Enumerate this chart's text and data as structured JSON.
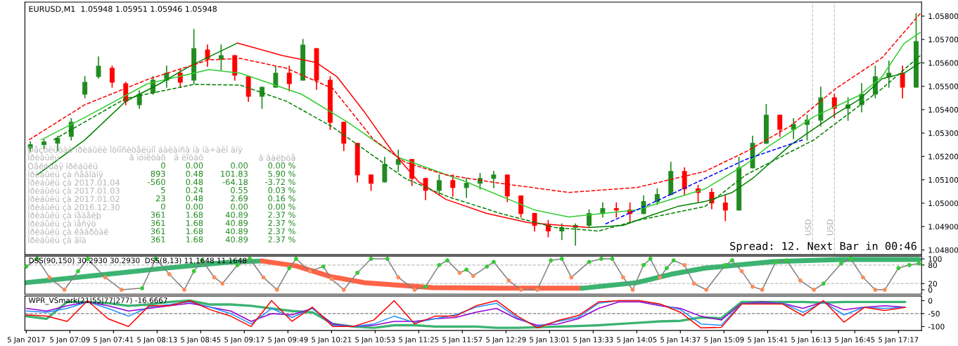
{
  "chart_data": [
    {
      "type": "candlestick",
      "title": "EURUSD,M1  1.05948 1.05951 1.05946 1.05948",
      "tick_labels": "y",
      "grid": false,
      "legend": false,
      "xlim": [
        "2017-01-05T06:36",
        "2017-01-05T17:34"
      ],
      "ylim": [
        1.0478,
        1.0586
      ],
      "yticks": [
        {
          "value": 1.048,
          "label": "1.04800"
        },
        {
          "value": 1.049,
          "label": "1.04900"
        },
        {
          "value": 1.05,
          "label": "1.05000"
        },
        {
          "value": 1.051,
          "label": "1.05100"
        },
        {
          "value": 1.052,
          "label": "1.05200"
        },
        {
          "value": 1.053,
          "label": "1.05300"
        },
        {
          "value": 1.054,
          "label": "1.05400"
        },
        {
          "value": 1.055,
          "label": "1.05500"
        },
        {
          "value": 1.056,
          "label": "1.05600"
        },
        {
          "value": 1.057,
          "label": "1.05700"
        },
        {
          "value": 1.058,
          "label": "1.05800"
        }
      ],
      "x": [
        "2017-01-05T06:40",
        "2017-01-05T06:50",
        "2017-01-05T07:00",
        "2017-01-05T07:10",
        "2017-01-05T07:20",
        "2017-01-05T07:30",
        "2017-01-05T07:40",
        "2017-01-05T07:50",
        "2017-01-05T08:00",
        "2017-01-05T08:10",
        "2017-01-05T08:20",
        "2017-01-05T08:30",
        "2017-01-05T08:40",
        "2017-01-05T08:50",
        "2017-01-05T09:00",
        "2017-01-05T09:10",
        "2017-01-05T09:20",
        "2017-01-05T09:30",
        "2017-01-05T09:40",
        "2017-01-05T09:50",
        "2017-01-05T10:00",
        "2017-01-05T10:10",
        "2017-01-05T10:20",
        "2017-01-05T10:30",
        "2017-01-05T10:40",
        "2017-01-05T10:50",
        "2017-01-05T11:00",
        "2017-01-05T11:10",
        "2017-01-05T11:20",
        "2017-01-05T11:30",
        "2017-01-05T11:40",
        "2017-01-05T11:50",
        "2017-01-05T12:00",
        "2017-01-05T12:10",
        "2017-01-05T12:20",
        "2017-01-05T12:30",
        "2017-01-05T12:40",
        "2017-01-05T12:50",
        "2017-01-05T13:00",
        "2017-01-05T13:10",
        "2017-01-05T13:20",
        "2017-01-05T13:30",
        "2017-01-05T13:40",
        "2017-01-05T13:50",
        "2017-01-05T14:00",
        "2017-01-05T14:10",
        "2017-01-05T14:20",
        "2017-01-05T14:30",
        "2017-01-05T14:40",
        "2017-01-05T14:50",
        "2017-01-05T15:00",
        "2017-01-05T15:10",
        "2017-01-05T15:20",
        "2017-01-05T15:30",
        "2017-01-05T15:40",
        "2017-01-05T15:50",
        "2017-01-05T16:00",
        "2017-01-05T16:10",
        "2017-01-05T16:20",
        "2017-01-05T16:30",
        "2017-01-05T16:40",
        "2017-01-05T16:50",
        "2017-01-05T17:00",
        "2017-01-05T17:10",
        "2017-01-05T17:20",
        "2017-01-05T17:30"
      ],
      "ohlc": [
        [
          1.05235,
          1.05262,
          1.05223,
          1.0525
        ],
        [
          1.0525,
          1.05271,
          1.05235,
          1.05262
        ],
        [
          1.05256,
          1.05286,
          1.05226,
          1.05277
        ],
        [
          1.05286,
          1.05361,
          1.05271,
          1.05346
        ],
        [
          1.05466,
          1.05541,
          1.05451,
          1.05517
        ],
        [
          1.05541,
          1.05625,
          1.05535,
          1.05586
        ],
        [
          1.05577,
          1.05586,
          1.05496,
          1.05517
        ],
        [
          1.05511,
          1.05517,
          1.05421,
          1.05436
        ],
        [
          1.05421,
          1.05481,
          1.05406,
          1.05466
        ],
        [
          1.05472,
          1.05541,
          1.05466,
          1.05526
        ],
        [
          1.05526,
          1.05586,
          1.05496,
          1.05556
        ],
        [
          1.05556,
          1.05571,
          1.05496,
          1.05517
        ],
        [
          1.05526,
          1.05742,
          1.05511,
          1.05661
        ],
        [
          1.05655,
          1.05676,
          1.05586,
          1.05616
        ],
        [
          1.05616,
          1.05676,
          1.05571,
          1.05631
        ],
        [
          1.05631,
          1.05631,
          1.05526,
          1.05547
        ],
        [
          1.05541,
          1.05541,
          1.05436,
          1.05457
        ],
        [
          1.05457,
          1.05496,
          1.05406,
          1.05496
        ],
        [
          1.05496,
          1.05586,
          1.05496,
          1.05556
        ],
        [
          1.05556,
          1.05586,
          1.05481,
          1.05511
        ],
        [
          1.05526,
          1.057,
          1.05526,
          1.05676
        ],
        [
          1.05661,
          1.05661,
          1.05487,
          1.05526
        ],
        [
          1.05526,
          1.05541,
          1.05316,
          1.05346
        ],
        [
          1.05346,
          1.05346,
          1.05226,
          1.05256
        ],
        [
          1.05256,
          1.05256,
          1.05091,
          1.05121
        ],
        [
          1.05121,
          1.05121,
          1.05055,
          1.05085
        ],
        [
          1.05091,
          1.05196,
          1.05091,
          1.05166
        ],
        [
          1.05166,
          1.05226,
          1.05136,
          1.05187
        ],
        [
          1.05187,
          1.05187,
          1.05076,
          1.05106
        ],
        [
          1.05106,
          1.05106,
          1.05016,
          1.05055
        ],
        [
          1.05055,
          1.05121,
          1.05037,
          1.05097
        ],
        [
          1.05097,
          1.05121,
          1.05031,
          1.05067
        ],
        [
          1.05067,
          1.05106,
          1.05025,
          1.05085
        ],
        [
          1.05085,
          1.05127,
          1.05061,
          1.05106
        ],
        [
          1.05106,
          1.05136,
          1.05067,
          1.05121
        ],
        [
          1.05121,
          1.05121,
          1.05007,
          1.05031
        ],
        [
          1.05031,
          1.05031,
          1.04941,
          1.04956
        ],
        [
          1.04956,
          1.04956,
          1.04881,
          1.04905
        ],
        [
          1.04905,
          1.04926,
          1.04857,
          1.04881
        ],
        [
          1.04881,
          1.04911,
          1.04845,
          1.04896
        ],
        [
          1.04896,
          1.04911,
          1.04821,
          1.04905
        ],
        [
          1.04905,
          1.04971,
          1.04896,
          1.04956
        ],
        [
          1.04956,
          1.05001,
          1.04941,
          1.04977
        ],
        [
          1.04977,
          1.05001,
          1.04941,
          1.04971
        ],
        [
          1.04971,
          1.05001,
          1.04917,
          1.04956
        ],
        [
          1.04956,
          1.05031,
          1.04956,
          1.05007
        ],
        [
          1.05007,
          1.05061,
          1.04995,
          1.05037
        ],
        [
          1.05037,
          1.05175,
          1.05037,
          1.05136
        ],
        [
          1.05136,
          1.05151,
          1.05037,
          1.05061
        ],
        [
          1.05061,
          1.05076,
          1.05007,
          1.05046
        ],
        [
          1.05046,
          1.05061,
          1.04977,
          1.05001
        ],
        [
          1.05001,
          1.05031,
          1.04926,
          1.04971
        ],
        [
          1.04971,
          1.05196,
          1.04971,
          1.05151
        ],
        [
          1.05151,
          1.05286,
          1.05151,
          1.05256
        ],
        [
          1.05256,
          1.05421,
          1.05256,
          1.05376
        ],
        [
          1.05376,
          1.05376,
          1.05286,
          1.05316
        ],
        [
          1.05316,
          1.05361,
          1.05277,
          1.05337
        ],
        [
          1.05337,
          1.05376,
          1.05271,
          1.05355
        ],
        [
          1.05355,
          1.05496,
          1.05331,
          1.05451
        ],
        [
          1.05451,
          1.05466,
          1.05367,
          1.05406
        ],
        [
          1.05406,
          1.05451,
          1.05355,
          1.05421
        ],
        [
          1.05421,
          1.05511,
          1.05391,
          1.05466
        ],
        [
          1.05466,
          1.05586,
          1.05451,
          1.05541
        ],
        [
          1.05541,
          1.05607,
          1.05496,
          1.05556
        ],
        [
          1.05556,
          1.05586,
          1.05451,
          1.05496
        ],
        [
          1.05496,
          1.05811,
          1.05496,
          1.05691
        ]
      ],
      "colors": [
        "#228b22",
        "#228b22",
        "#228b22",
        "#228b22",
        "#228b22",
        "#228b22",
        "#ff0000",
        "#ff0000",
        "#228b22",
        "#228b22",
        "#228b22",
        "#ff0000",
        "#228b22",
        "#ff0000",
        "#228b22",
        "#ff0000",
        "#ff0000",
        "#228b22",
        "#228b22",
        "#ff0000",
        "#228b22",
        "#ff0000",
        "#ff0000",
        "#ff0000",
        "#ff0000",
        "#ff0000",
        "#228b22",
        "#228b22",
        "#ff0000",
        "#ff0000",
        "#228b22",
        "#ff0000",
        "#228b22",
        "#228b22",
        "#228b22",
        "#ff0000",
        "#ff0000",
        "#ff0000",
        "#ff0000",
        "#228b22",
        "#228b22",
        "#228b22",
        "#228b22",
        "#ff0000",
        "#ff0000",
        "#228b22",
        "#228b22",
        "#228b22",
        "#ff0000",
        "#ff0000",
        "#ff0000",
        "#ff0000",
        "#228b22",
        "#228b22",
        "#228b22",
        "#ff0000",
        "#228b22",
        "#228b22",
        "#228b22",
        "#ff0000",
        "#228b22",
        "#228b22",
        "#228b22",
        "#228b22",
        "#ff0000",
        "#228b22"
      ],
      "series": [
        {
          "type": "line",
          "color": "#32cd32",
          "line_style": "solid",
          "x": [
            "2017-01-05T06:48",
            "2017-01-05T07:20",
            "2017-01-05T08:06",
            "2017-01-05T08:51",
            "2017-01-05T09:14",
            "2017-01-05T09:59",
            "2017-01-05T10:33",
            "2017-01-05T11:10",
            "2017-01-05T12:00",
            "2017-01-05T12:50",
            "2017-01-05T13:15",
            "2017-01-05T14:05",
            "2017-01-05T14:55",
            "2017-01-05T15:25",
            "2017-01-05T15:41",
            "2017-01-05T16:15",
            "2017-01-05T16:48",
            "2017-01-05T17:05",
            "2017-01-05T17:21",
            "2017-01-05T17:33"
          ],
          "values": [
            1.05271,
            1.05367,
            1.05511,
            1.05571,
            1.05556,
            1.05466,
            1.05346,
            1.05196,
            1.05091,
            1.04971,
            1.04941,
            1.04971,
            1.05061,
            1.05166,
            1.05241,
            1.0537,
            1.0546,
            1.05541,
            1.05682,
            1.0573
          ]
        },
        {
          "type": "line",
          "color": "#008000",
          "line_style": "solid",
          "x": [
            "2017-01-05T06:45",
            "2017-01-05T07:20",
            "2017-01-05T07:50",
            "2017-01-05T08:15",
            "2017-01-05T08:37",
            "2017-01-05T09:12"
          ],
          "values": [
            1.05121,
            1.05271,
            1.05436,
            1.05511,
            1.05586,
            1.05685
          ]
        },
        {
          "type": "line",
          "color": "#ff0000",
          "line_style": "solid",
          "x": [
            "2017-01-05T09:12",
            "2017-01-05T09:45",
            "2017-01-05T10:10",
            "2017-01-05T10:25",
            "2017-01-05T10:45",
            "2017-01-05T11:05",
            "2017-01-05T11:25",
            "2017-01-05T11:45",
            "2017-01-05T12:15",
            "2017-01-05T12:45",
            "2017-01-05T13:10",
            "2017-01-05T13:30"
          ],
          "values": [
            1.05685,
            1.05631,
            1.05601,
            1.05541,
            1.05391,
            1.05226,
            1.05091,
            1.05016,
            1.04956,
            1.04917,
            1.04905,
            1.04896
          ]
        },
        {
          "type": "line",
          "color": "#008000",
          "line_style": "solid",
          "x": [
            "2017-01-05T13:30",
            "2017-01-05T13:55",
            "2017-01-05T14:15",
            "2017-01-05T14:35",
            "2017-01-05T14:55",
            "2017-01-05T15:15",
            "2017-01-05T15:30",
            "2017-01-05T15:58",
            "2017-01-05T16:31",
            "2017-01-05T16:48",
            "2017-01-05T17:05",
            "2017-01-05T17:21",
            "2017-01-05T17:33"
          ],
          "values": [
            1.04896,
            1.04905,
            1.04947,
            1.04986,
            1.05007,
            1.05046,
            1.05106,
            1.0525,
            1.05382,
            1.05442,
            1.05532,
            1.05556,
            1.05601
          ]
        },
        {
          "type": "line",
          "color": "#ff0000",
          "line_style": "dashed",
          "x": [
            "2017-01-05T06:39",
            "2017-01-05T07:20",
            "2017-01-05T08:06",
            "2017-01-05T08:51",
            "2017-01-05T09:14",
            "2017-01-05T09:48",
            "2017-01-05T10:22",
            "2017-01-05T10:52",
            "2017-01-05T11:15",
            "2017-01-05T11:45",
            "2017-01-05T12:25",
            "2017-01-05T13:15",
            "2017-01-05T14:05",
            "2017-01-05T14:55",
            "2017-01-05T15:25",
            "2017-01-05T15:58",
            "2017-01-05T16:31",
            "2017-01-05T17:05",
            "2017-01-05T17:33"
          ],
          "values": [
            1.05271,
            1.05421,
            1.05529,
            1.05613,
            1.05619,
            1.05577,
            1.0549,
            1.05271,
            1.05175,
            1.05121,
            1.05085,
            1.05046,
            1.05067,
            1.05136,
            1.0522,
            1.05331,
            1.0549,
            1.05622,
            1.05811
          ]
        },
        {
          "type": "line",
          "color": "#008000",
          "line_style": "dashed",
          "x": [
            "2017-01-05T06:57",
            "2017-01-05T07:50",
            "2017-01-05T08:40",
            "2017-01-05T09:14",
            "2017-01-05T09:48",
            "2017-01-05T10:22",
            "2017-01-05T11:15",
            "2017-01-05T11:45",
            "2017-01-05T12:25",
            "2017-01-05T13:05",
            "2017-01-05T13:37",
            "2017-01-05T14:05",
            "2017-01-05T14:55",
            "2017-01-05T15:25",
            "2017-01-05T16:15",
            "2017-01-05T17:05",
            "2017-01-05T17:33"
          ],
          "values": [
            1.05271,
            1.05448,
            1.05508,
            1.05505,
            1.05436,
            1.05325,
            1.05106,
            1.05031,
            1.04956,
            1.04896,
            1.04881,
            1.04926,
            1.04986,
            1.05121,
            1.05271,
            1.0549,
            1.05631
          ]
        },
        {
          "type": "line",
          "color": "#0000ff",
          "line_style": "dashed",
          "x": [
            "2017-01-05T13:42",
            "2017-01-05T14:22",
            "2017-01-05T15:25",
            "2017-01-05T16:07"
          ],
          "values": [
            1.04911,
            1.05016,
            1.05187,
            1.05271
          ]
        }
      ],
      "ref_lines": [
        {
          "axis": "x",
          "value": "2017-01-05T16:14",
          "label": "USD",
          "color": "#c8c8c8",
          "line_style": "dashed"
        },
        {
          "axis": "x",
          "value": "2017-01-05T16:30",
          "label": "USD",
          "color": "#c8c8c8",
          "line_style": "dashed"
        }
      ],
      "annotations": [
        "Spread: 12. Next Bar in 00:46",
        "Ðåçóëüòàò ïðèáûëè îòíîñèòåëüíî áàëàíñà íà íà÷àëî äíÿ",
        "Ïðèáûëü\tâ ïóíêòàõ\tâ ëîòàõ\t\tâ âàëþòå",
        "Òåêóùàÿ ïðèáûëü\t0\t0.00\t0.00\t0.00 %",
        "Ïðèáûëü çà ñåãîäíÿ\t893\t0.48\t101.83\t5.90 %",
        "Ïðèáûëü çà 2017.01.04\t-560\t0.48\t-64.18\t-3.72 %",
        "Ïðèáûëü çà 2017.01.03\t5\t0.24\t0.55\t0.03 %",
        "Ïðèáûëü çà 2017.01.02\t23\t0.48\t2.69\t0.16 %",
        "Ïðèáûëü çà 2016.12.30\t0\t0.00\t0.00\t0.00 %",
        "Ïðèáûëü çà íåäåëþ\t361\t1.68\t40.89\t2.37 %",
        "Ïðèáûëü çà ìåñÿö\t361\t1.68\t40.89\t2.37 %",
        "Ïðèáûëü çà êâàðòàë\t361\t1.68\t40.89\t2.37 %",
        "Ïðèáûëü çà ãîä\t361\t1.68\t40.89\t2.37 %"
      ]
    },
    {
      "type": "line",
      "tick_labels": "y",
      "grid": false,
      "legend": false,
      "xlim": [
        "2017-01-05T06:36",
        "2017-01-05T17:34"
      ],
      "ylim": [
        -14,
        109
      ],
      "yticks": [
        100,
        80,
        20,
        0
      ],
      "ref_lines": [
        {
          "axis": "y",
          "value": 80,
          "color": "#c0c0c0",
          "line_style": "dashed"
        },
        {
          "axis": "y",
          "value": 20,
          "color": "#c0c0c0",
          "line_style": "dashed"
        }
      ],
      "annotations": [
        "DSS(90,150) 30.2930 30.2930  DSS(8,13) 11.1648 11.1648"
      ],
      "series": [
        {
          "type": "line",
          "color": "#3cb371",
          "x": [
            "2017-01-05T06:37",
            "2017-01-05T07:25",
            "2017-01-05T08:15",
            "2017-01-05T09:05",
            "2017-01-05T09:30"
          ],
          "values": [
            23,
            45,
            68,
            89,
            93
          ]
        },
        {
          "type": "line",
          "color": "#ff6347",
          "x": [
            "2017-01-05T09:30",
            "2017-01-05T09:55",
            "2017-01-05T10:20",
            "2017-01-05T10:45",
            "2017-01-05T11:35",
            "2017-01-05T12:25",
            "2017-01-05T13:25"
          ],
          "values": [
            93,
            77,
            43,
            23,
            7,
            5,
            5
          ]
        },
        {
          "type": "line",
          "color": "#3cb371",
          "x": [
            "2017-01-05T13:25",
            "2017-01-05T14:05",
            "2017-01-05T14:30",
            "2017-01-05T14:55",
            "2017-01-05T15:45",
            "2017-01-05T16:35",
            "2017-01-05T17:32"
          ],
          "values": [
            5,
            23,
            50,
            70,
            91,
            98,
            98
          ]
        },
        {
          "type": "line",
          "color": "#808080",
          "marker": "circle",
          "x": [
            "2017-01-05T06:37",
            "2017-01-05T06:45",
            "2017-01-05T06:54",
            "2017-01-05T07:05",
            "2017-01-05T07:15",
            "2017-01-05T07:22",
            "2017-01-05T07:35",
            "2017-01-05T07:47",
            "2017-01-05T08:02",
            "2017-01-05T08:12",
            "2017-01-05T08:22",
            "2017-01-05T08:33",
            "2017-01-05T08:40",
            "2017-01-05T08:46",
            "2017-01-05T08:55",
            "2017-01-05T09:01",
            "2017-01-05T09:12",
            "2017-01-05T09:21",
            "2017-01-05T09:31",
            "2017-01-05T09:41",
            "2017-01-05T09:50",
            "2017-01-05T09:55",
            "2017-01-05T10:05",
            "2017-01-05T10:15",
            "2017-01-05T10:21",
            "2017-01-05T10:30",
            "2017-01-05T10:40",
            "2017-01-05T10:50",
            "2017-01-05T11:02",
            "2017-01-05T11:10",
            "2017-01-05T11:22",
            "2017-01-05T11:30",
            "2017-01-05T11:40",
            "2017-01-05T11:46",
            "2017-01-05T11:55",
            "2017-01-05T12:00",
            "2017-01-05T12:05",
            "2017-01-05T12:15",
            "2017-01-05T12:20",
            "2017-01-05T12:31",
            "2017-01-05T12:40",
            "2017-01-05T12:52",
            "2017-01-05T13:02",
            "2017-01-05T13:10",
            "2017-01-05T13:17",
            "2017-01-05T13:30",
            "2017-01-05T13:39",
            "2017-01-05T13:47",
            "2017-01-05T13:55",
            "2017-01-05T14:02",
            "2017-01-05T14:10",
            "2017-01-05T14:15",
            "2017-01-05T14:22",
            "2017-01-05T14:27",
            "2017-01-05T14:32",
            "2017-01-05T14:40",
            "2017-01-05T14:47",
            "2017-01-05T14:56",
            "2017-01-05T15:10",
            "2017-01-05T15:15",
            "2017-01-05T15:22",
            "2017-01-05T15:30",
            "2017-01-05T15:37",
            "2017-01-05T15:47",
            "2017-01-05T15:55",
            "2017-01-05T16:05",
            "2017-01-05T16:15",
            "2017-01-05T16:22",
            "2017-01-05T16:35",
            "2017-01-05T16:42",
            "2017-01-05T16:51",
            "2017-01-05T17:00",
            "2017-01-05T17:07",
            "2017-01-05T17:17",
            "2017-01-05T17:25",
            "2017-01-05T17:32"
          ],
          "values": [
            75,
            100,
            40,
            0,
            60,
            100,
            40,
            0,
            5,
            100,
            50,
            0,
            60,
            95,
            40,
            20,
            80,
            100,
            40,
            0,
            70,
            100,
            60,
            75,
            35,
            0,
            55,
            100,
            100,
            40,
            0,
            10,
            80,
            95,
            55,
            65,
            45,
            75,
            90,
            30,
            0,
            0,
            95,
            100,
            40,
            90,
            100,
            100,
            40,
            0,
            80,
            100,
            40,
            70,
            95,
            80,
            20,
            0,
            80,
            95,
            60,
            10,
            0,
            90,
            95,
            30,
            0,
            20,
            85,
            100,
            40,
            0,
            0,
            70,
            80,
            85
          ],
          "colors": [
            "#32cd32",
            "#32cd32",
            "#ff8c5a",
            "#ff8c5a",
            "#32cd32",
            "#32cd32",
            "#ff8c5a",
            "#ff8c5a",
            "#32cd32",
            "#32cd32",
            "#ff8c5a",
            "#ff8c5a",
            "#32cd32",
            "#32cd32",
            "#ff8c5a",
            "#ff8c5a",
            "#32cd32",
            "#32cd32",
            "#ff8c5a",
            "#ff8c5a",
            "#32cd32",
            "#32cd32",
            "#ff8c5a",
            "#32cd32",
            "#ff8c5a",
            "#ff8c5a",
            "#32cd32",
            "#32cd32",
            "#32cd32",
            "#ff8c5a",
            "#ff8c5a",
            "#32cd32",
            "#32cd32",
            "#32cd32",
            "#ff8c5a",
            "#32cd32",
            "#ff8c5a",
            "#32cd32",
            "#32cd32",
            "#ff8c5a",
            "#ff8c5a",
            "#ff8c5a",
            "#32cd32",
            "#32cd32",
            "#ff8c5a",
            "#32cd32",
            "#32cd32",
            "#32cd32",
            "#ff8c5a",
            "#ff8c5a",
            "#32cd32",
            "#32cd32",
            "#ff8c5a",
            "#32cd32",
            "#32cd32",
            "#ff8c5a",
            "#ff8c5a",
            "#ff8c5a",
            "#32cd32",
            "#32cd32",
            "#ff8c5a",
            "#ff8c5a",
            "#ff8c5a",
            "#32cd32",
            "#32cd32",
            "#ff8c5a",
            "#ff8c5a",
            "#32cd32",
            "#32cd32",
            "#32cd32",
            "#ff8c5a",
            "#ff8c5a",
            "#ff8c5a",
            "#32cd32",
            "#32cd32",
            "#32cd32"
          ]
        }
      ]
    },
    {
      "type": "line",
      "grid": false,
      "legend": false,
      "xlim": [
        "2017-01-05T06:36",
        "2017-01-05T17:34"
      ],
      "ylim": [
        -115,
        18
      ],
      "yticks": [
        {
          "value": 0,
          "label": "0"
        },
        {
          "value": -50,
          "label": "-50"
        },
        {
          "value": -100,
          "label": "-100"
        }
      ],
      "xticks": [
        {
          "value": "2017-01-05T06:37",
          "label": "5 Jan 2017"
        },
        {
          "value": "2017-01-05T07:09",
          "label": "5 Jan 07:09"
        },
        {
          "value": "2017-01-05T07:41",
          "label": "5 Jan 07:41"
        },
        {
          "value": "2017-01-05T08:13",
          "label": "5 Jan 08:13"
        },
        {
          "value": "2017-01-05T08:45",
          "label": "5 Jan 08:45"
        },
        {
          "value": "2017-01-05T09:17",
          "label": "5 Jan 09:17"
        },
        {
          "value": "2017-01-05T09:49",
          "label": "5 Jan 09:49"
        },
        {
          "value": "2017-01-05T10:21",
          "label": "5 Jan 10:21"
        },
        {
          "value": "2017-01-05T10:53",
          "label": "5 Jan 10:53"
        },
        {
          "value": "2017-01-05T11:25",
          "label": "5 Jan 11:25"
        },
        {
          "value": "2017-01-05T11:57",
          "label": "5 Jan 11:57"
        },
        {
          "value": "2017-01-05T12:29",
          "label": "5 Jan 12:29"
        },
        {
          "value": "2017-01-05T13:01",
          "label": "5 Jan 13:01"
        },
        {
          "value": "2017-01-05T13:33",
          "label": "5 Jan 13:33"
        },
        {
          "value": "2017-01-05T14:05",
          "label": "5 Jan 14:05"
        },
        {
          "value": "2017-01-05T14:37",
          "label": "5 Jan 14:37"
        },
        {
          "value": "2017-01-05T15:09",
          "label": "5 Jan 15:09"
        },
        {
          "value": "2017-01-05T15:41",
          "label": "5 Jan 15:41"
        },
        {
          "value": "2017-01-05T16:13",
          "label": "5 Jan 16:13"
        },
        {
          "value": "2017-01-05T16:45",
          "label": "5 Jan 16:45"
        },
        {
          "value": "2017-01-05T17:17",
          "label": "5 Jan 17:17"
        }
      ],
      "ref_lines": [
        {
          "axis": "y",
          "value": -50,
          "color": "#808080",
          "line_style": "dashed"
        }
      ],
      "annotations": [
        "WPR_VSmark(21|55|77|277) -16.6667"
      ],
      "x": [
        "2017-01-05T06:37",
        "2017-01-05T06:52",
        "2017-01-05T07:07",
        "2017-01-05T07:22",
        "2017-01-05T07:37",
        "2017-01-05T07:52",
        "2017-01-05T08:07",
        "2017-01-05T08:22",
        "2017-01-05T08:37",
        "2017-01-05T08:52",
        "2017-01-05T09:07",
        "2017-01-05T09:22",
        "2017-01-05T09:37",
        "2017-01-05T09:52",
        "2017-01-05T10:07",
        "2017-01-05T10:22",
        "2017-01-05T10:37",
        "2017-01-05T10:52",
        "2017-01-05T11:07",
        "2017-01-05T11:22",
        "2017-01-05T11:37",
        "2017-01-05T11:52",
        "2017-01-05T12:07",
        "2017-01-05T12:22",
        "2017-01-05T12:37",
        "2017-01-05T12:52",
        "2017-01-05T13:07",
        "2017-01-05T13:22",
        "2017-01-05T13:37",
        "2017-01-05T13:52",
        "2017-01-05T14:07",
        "2017-01-05T14:22",
        "2017-01-05T14:37",
        "2017-01-05T14:52",
        "2017-01-05T15:07",
        "2017-01-05T15:22",
        "2017-01-05T15:37",
        "2017-01-05T15:52",
        "2017-01-05T16:07",
        "2017-01-05T16:22",
        "2017-01-05T16:37",
        "2017-01-05T16:52",
        "2017-01-05T17:07",
        "2017-01-05T17:22"
      ],
      "series": [
        {
          "type": "line",
          "color": "#3cb371",
          "values": [
            -60,
            -70,
            -5,
            -5,
            -10,
            -20,
            -15,
            -5,
            0,
            -15,
            -15,
            -20,
            -30,
            -40,
            -45,
            -90,
            -100,
            -105,
            -95,
            -95,
            -100,
            -100,
            -100,
            -105,
            -105,
            -103,
            -100,
            -98,
            -95,
            -90,
            -85,
            -80,
            -78,
            -65,
            -68,
            -5,
            -5,
            -5,
            -5,
            -8,
            -5,
            -5,
            -5,
            -5
          ]
        },
        {
          "type": "line",
          "color": "#9400d3",
          "values": [
            -30,
            -40,
            -20,
            -5,
            -20,
            -40,
            -30,
            -20,
            -10,
            -25,
            -40,
            -80,
            -50,
            -55,
            -30,
            -90,
            -100,
            -95,
            -80,
            -80,
            -70,
            -65,
            -45,
            -30,
            -70,
            -95,
            -90,
            -70,
            -30,
            -5,
            -5,
            -20,
            -30,
            -60,
            -75,
            -10,
            -5,
            -10,
            -30,
            -5,
            -35,
            -25,
            -20,
            -25
          ]
        },
        {
          "type": "line",
          "color": "#1e90ff",
          "values": [
            -40,
            -45,
            -30,
            -5,
            -30,
            -60,
            -25,
            -15,
            -5,
            -25,
            -50,
            -90,
            -30,
            -65,
            -30,
            -95,
            -100,
            -90,
            -60,
            -85,
            -70,
            -55,
            -25,
            -10,
            -65,
            -100,
            -80,
            -65,
            -10,
            0,
            0,
            -15,
            -35,
            -90,
            -95,
            -10,
            -10,
            -10,
            -45,
            -5,
            -55,
            -25,
            -30,
            -25
          ]
        },
        {
          "type": "line",
          "color": "#ff0000",
          "values": [
            -55,
            -60,
            -80,
            0,
            -70,
            -100,
            -20,
            -20,
            0,
            -35,
            -60,
            -100,
            0,
            -80,
            -25,
            -100,
            -100,
            -75,
            0,
            -90,
            -60,
            -60,
            -20,
            0,
            -58,
            -105,
            -77,
            -58,
            -5,
            0,
            0,
            -13,
            -45,
            -105,
            -103,
            -13,
            -13,
            -13,
            -58,
            0,
            -83,
            -26,
            -38,
            -26
          ]
        }
      ]
    }
  ]
}
